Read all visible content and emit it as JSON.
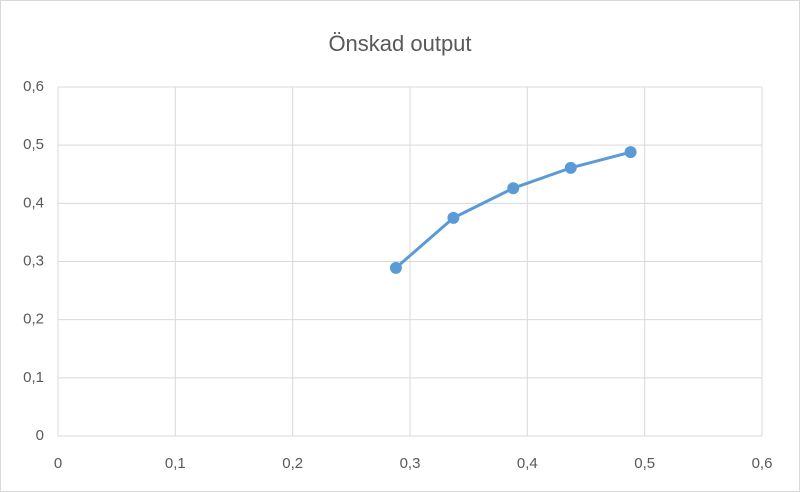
{
  "chart_data": {
    "type": "scatter",
    "title": "Önskad output",
    "series": [
      {
        "color": "#5b9bd5",
        "x": [
          0.288,
          0.337,
          0.388,
          0.437,
          0.488
        ],
        "values": [
          0.289,
          0.375,
          0.426,
          0.461,
          0.488
        ]
      }
    ],
    "xlim": [
      0,
      0.6
    ],
    "ylim": [
      0,
      0.6
    ],
    "xticks": [
      0,
      {
        "value": 0.1,
        "label": "0,1"
      },
      {
        "value": 0.2,
        "label": "0,2"
      },
      {
        "value": 0.3,
        "label": "0,3"
      },
      {
        "value": 0.4,
        "label": "0,4"
      },
      {
        "value": 0.5,
        "label": "0,5"
      },
      {
        "value": 0.6,
        "label": "0,6"
      }
    ],
    "yticks": [
      0,
      {
        "value": 0.1,
        "label": "0,1"
      },
      {
        "value": 0.2,
        "label": "0,2"
      },
      {
        "value": 0.3,
        "label": "0,3"
      },
      {
        "value": 0.4,
        "label": "0,4"
      },
      {
        "value": 0.5,
        "label": "0,5"
      },
      {
        "value": 0.6,
        "label": "0,6"
      }
    ],
    "grid": true
  }
}
